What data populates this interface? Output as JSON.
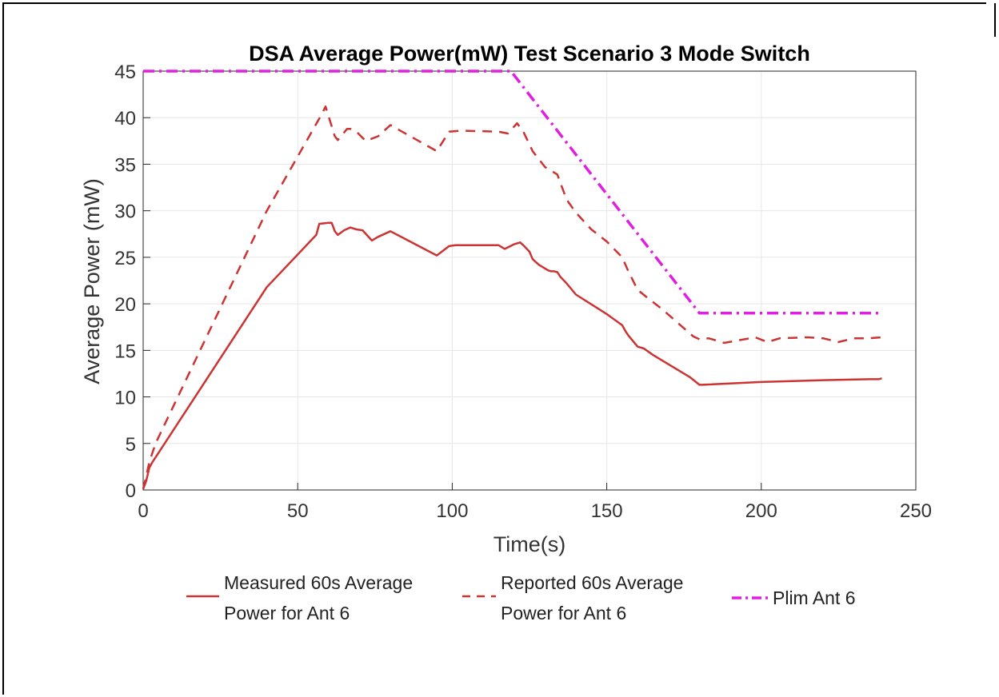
{
  "chart_data": {
    "type": "line",
    "title": "DSA Average Power(mW) Test Scenario 3 Mode Switch",
    "xlabel": "Time(s)",
    "ylabel": "Average Power (mW)",
    "xlim": [
      0,
      250
    ],
    "ylim": [
      0,
      45
    ],
    "xticks": [
      "0",
      "50",
      "100",
      "150",
      "200",
      "250"
    ],
    "yticks": [
      "0",
      "5",
      "10",
      "15",
      "20",
      "25",
      "30",
      "35",
      "40",
      "45"
    ],
    "grid": true,
    "legend_position": "bottom",
    "series": [
      {
        "name": "Measured 60s Average Power for Ant 6",
        "legend_lines": [
          "Measured 60s Average",
          "Power for Ant 6"
        ],
        "style": "solid",
        "color": "#cc3333",
        "x": [
          0,
          1,
          2,
          3,
          4,
          40,
          56,
          57,
          60,
          61,
          62,
          63,
          65,
          67,
          69,
          71,
          74,
          76,
          80,
          95,
          99,
          101,
          115,
          117,
          120,
          122,
          123,
          125,
          126,
          128,
          131,
          132,
          133,
          134,
          135,
          137,
          140,
          150,
          155,
          156,
          157,
          160,
          161,
          162,
          165,
          177,
          180,
          181,
          200,
          220,
          235,
          238,
          239
        ],
        "y": [
          0.1,
          1.0,
          2.4,
          3.0,
          3.5,
          21.8,
          27.4,
          28.6,
          28.7,
          28.7,
          27.8,
          27.4,
          27.9,
          28.2,
          28.0,
          27.9,
          26.8,
          27.2,
          27.8,
          25.2,
          26.2,
          26.3,
          26.3,
          25.9,
          26.4,
          26.6,
          26.3,
          25.6,
          24.8,
          24.2,
          23.6,
          23.5,
          23.5,
          23.4,
          22.9,
          22.2,
          21.0,
          18.9,
          17.7,
          17.1,
          16.6,
          15.4,
          15.3,
          15.2,
          14.5,
          12.1,
          11.3,
          11.3,
          11.6,
          11.8,
          11.9,
          11.9,
          12.0
        ]
      },
      {
        "name": "Reported 60s Average Power for Ant 6",
        "legend_lines": [
          "Reported 60s Average",
          "Power for Ant 6"
        ],
        "style": "dashed",
        "color": "#cc3333",
        "x": [
          0,
          1,
          2,
          3,
          4,
          40,
          58,
          59,
          62,
          63,
          66,
          67,
          69,
          72,
          76,
          80,
          95,
          99,
          103,
          115,
          118,
          121,
          123,
          126,
          130,
          134,
          137,
          140,
          145,
          150,
          155,
          157,
          160,
          163,
          168,
          178,
          180,
          183,
          188,
          193,
          198,
          202,
          206,
          215,
          220,
          225,
          230,
          235,
          239
        ],
        "y": [
          0.1,
          1.5,
          3.0,
          4.0,
          5.0,
          30.0,
          40.5,
          41.2,
          38.0,
          37.6,
          38.8,
          38.8,
          38.5,
          37.5,
          38.0,
          39.2,
          36.4,
          38.5,
          38.6,
          38.5,
          38.3,
          39.4,
          38.5,
          36.4,
          34.7,
          33.9,
          31.2,
          29.8,
          28.0,
          26.7,
          25.0,
          23.5,
          21.5,
          20.7,
          19.4,
          16.5,
          16.2,
          16.3,
          15.8,
          16.1,
          16.4,
          15.9,
          16.3,
          16.4,
          16.3,
          15.9,
          16.3,
          16.3,
          16.4
        ]
      },
      {
        "name": "Plim Ant 6",
        "legend_lines": [
          "Plim Ant 6"
        ],
        "style": "dashdot",
        "color": "#e020e0",
        "x": [
          0,
          119,
          180,
          239
        ],
        "y": [
          45,
          45,
          19,
          19
        ]
      }
    ]
  }
}
